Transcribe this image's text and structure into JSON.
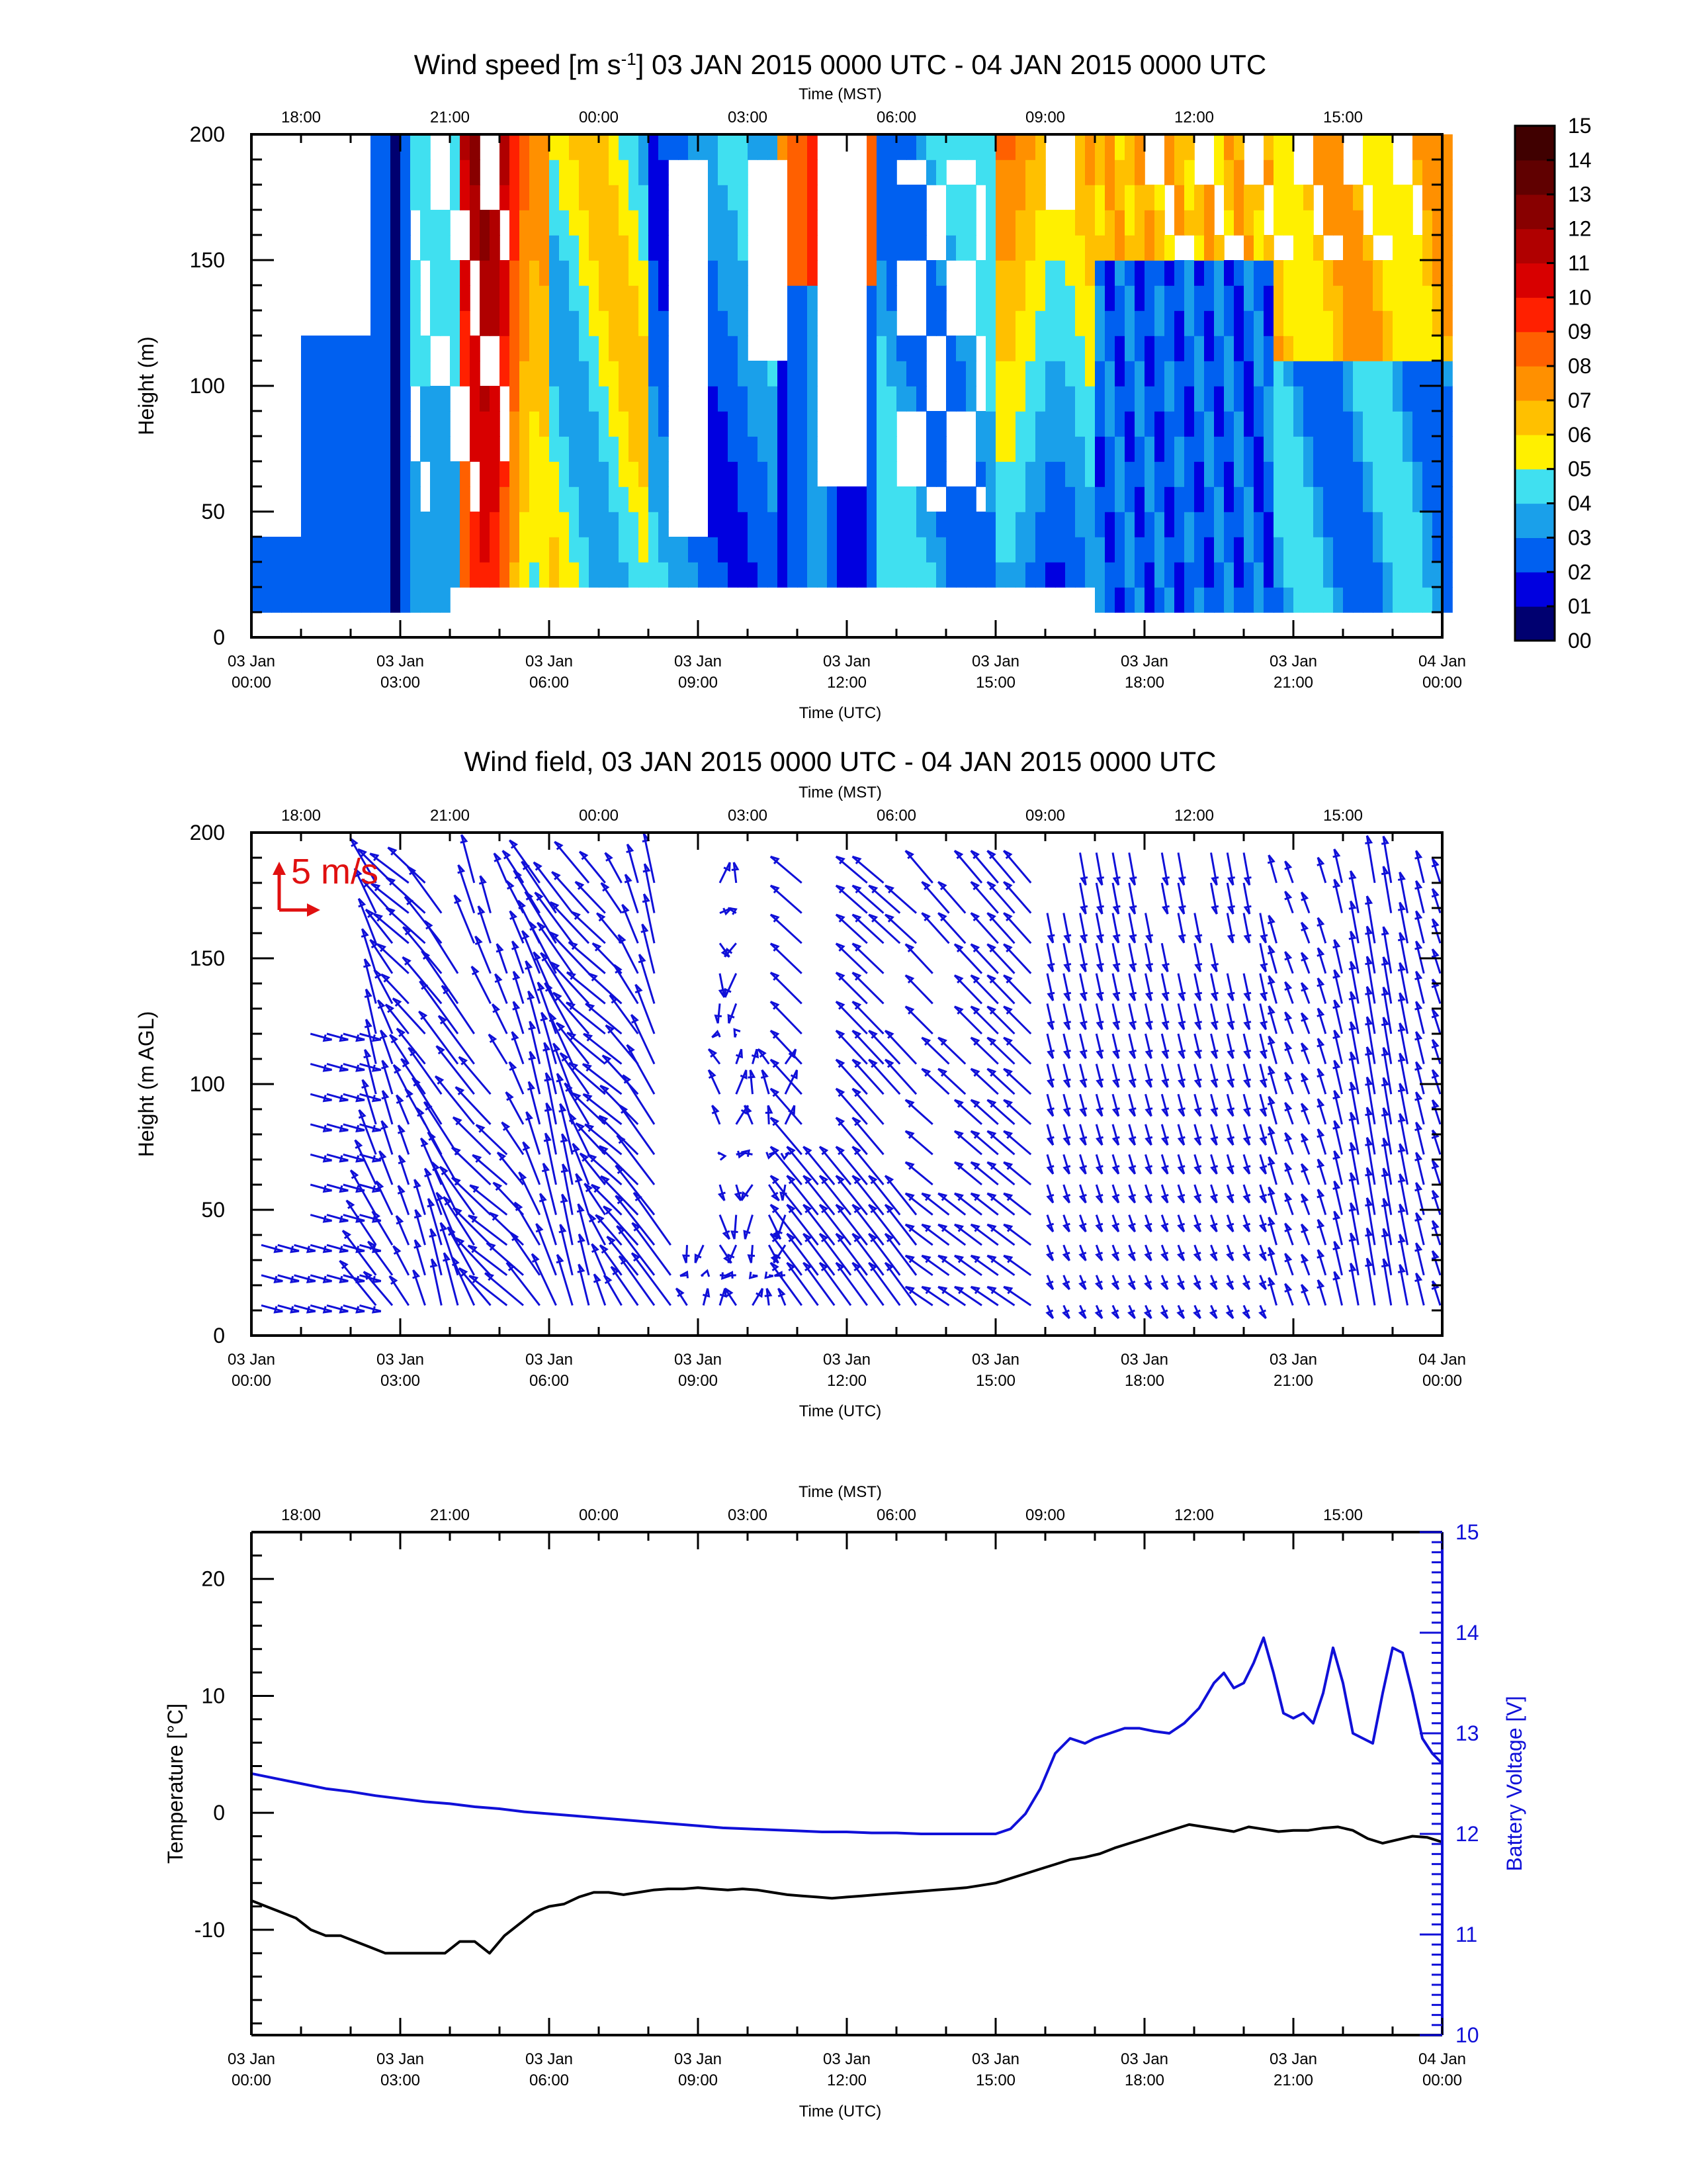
{
  "chart_data": [
    {
      "type": "heatmap",
      "title_pre": "Wind speed [m s",
      "title_sup": "-1",
      "title_post": "] 03 JAN 2015 0000 UTC - 04 JAN 2015 0000 UTC",
      "top_axis_label": "Time (MST)",
      "top_ticks": [
        "18:00",
        "21:00",
        "00:00",
        "03:00",
        "06:00",
        "09:00",
        "12:00",
        "15:00"
      ],
      "xlabel": "Time (UTC)",
      "x_ticks": [
        {
          "line1": "03 Jan",
          "line2": "00:00"
        },
        {
          "line1": "03 Jan",
          "line2": "03:00"
        },
        {
          "line1": "03 Jan",
          "line2": "06:00"
        },
        {
          "line1": "03 Jan",
          "line2": "09:00"
        },
        {
          "line1": "03 Jan",
          "line2": "12:00"
        },
        {
          "line1": "03 Jan",
          "line2": "15:00"
        },
        {
          "line1": "03 Jan",
          "line2": "18:00"
        },
        {
          "line1": "03 Jan",
          "line2": "21:00"
        },
        {
          "line1": "04 Jan",
          "line2": "00:00"
        }
      ],
      "xlim": [
        0,
        24
      ],
      "ylabel": "Height (m)",
      "ylim": [
        0,
        200
      ],
      "y_ticks": [
        "0",
        "50",
        "100",
        "150",
        "200"
      ],
      "colorbar": {
        "labels": [
          "00",
          "01",
          "02",
          "03",
          "04",
          "05",
          "06",
          "07",
          "08",
          "09",
          "10",
          "11",
          "12",
          "13",
          "14",
          "15"
        ],
        "colors": [
          "#000070",
          "#0000e0",
          "#0060f0",
          "#1aa0ea",
          "#40e0f0",
          "#fff000",
          "#ffc000",
          "#ff9000",
          "#ff6000",
          "#ff2000",
          "#d80000",
          "#b00000",
          "#880000",
          "#600000",
          "#400000"
        ]
      }
    },
    {
      "type": "vector-field",
      "title": "Wind field, 03 JAN 2015 0000 UTC - 04 JAN 2015 0000 UTC",
      "top_axis_label": "Time (MST)",
      "top_ticks": [
        "18:00",
        "21:00",
        "00:00",
        "03:00",
        "06:00",
        "09:00",
        "12:00",
        "15:00"
      ],
      "xlabel": "Time (UTC)",
      "x_ticks": [
        {
          "line1": "03 Jan",
          "line2": "00:00"
        },
        {
          "line1": "03 Jan",
          "line2": "03:00"
        },
        {
          "line1": "03 Jan",
          "line2": "06:00"
        },
        {
          "line1": "03 Jan",
          "line2": "09:00"
        },
        {
          "line1": "03 Jan",
          "line2": "12:00"
        },
        {
          "line1": "03 Jan",
          "line2": "15:00"
        },
        {
          "line1": "03 Jan",
          "line2": "18:00"
        },
        {
          "line1": "03 Jan",
          "line2": "21:00"
        },
        {
          "line1": "04 Jan",
          "line2": "00:00"
        }
      ],
      "xlim": [
        0,
        24
      ],
      "ylabel": "Height (m AGL)",
      "ylim": [
        0,
        200
      ],
      "y_ticks": [
        "0",
        "50",
        "100",
        "150",
        "200"
      ],
      "scale_label": "5 m/s",
      "arrow_color": "#1010d8",
      "scale_color": "#e01010"
    },
    {
      "type": "line",
      "top_axis_label": "Time (MST)",
      "top_ticks": [
        "18:00",
        "21:00",
        "00:00",
        "03:00",
        "06:00",
        "09:00",
        "12:00",
        "15:00"
      ],
      "xlabel": "Time (UTC)",
      "x_ticks": [
        {
          "line1": "03 Jan",
          "line2": "00:00"
        },
        {
          "line1": "03 Jan",
          "line2": "03:00"
        },
        {
          "line1": "03 Jan",
          "line2": "06:00"
        },
        {
          "line1": "03 Jan",
          "line2": "09:00"
        },
        {
          "line1": "03 Jan",
          "line2": "12:00"
        },
        {
          "line1": "03 Jan",
          "line2": "15:00"
        },
        {
          "line1": "03 Jan",
          "line2": "18:00"
        },
        {
          "line1": "03 Jan",
          "line2": "21:00"
        },
        {
          "line1": "04 Jan",
          "line2": "00:00"
        }
      ],
      "xlim": [
        0,
        24
      ],
      "ylabel_left": "Temperature [°C]",
      "ylim_left": [
        -19,
        24
      ],
      "y_ticks_left": [
        "-10",
        "0",
        "10",
        "20"
      ],
      "ylabel_right": "Battery Voltage [V]",
      "ylim_right": [
        10,
        15
      ],
      "y_ticks_right": [
        "10",
        "11",
        "12",
        "13",
        "14",
        "15"
      ],
      "right_color": "#1010d8",
      "series": [
        {
          "axis": "left",
          "color": "#000000",
          "x": [
            0,
            0.3,
            0.6,
            0.9,
            1.2,
            1.5,
            1.8,
            2.1,
            2.4,
            2.7,
            3.0,
            3.3,
            3.6,
            3.9,
            4.2,
            4.5,
            4.8,
            5.1,
            5.4,
            5.7,
            6.0,
            6.3,
            6.6,
            6.9,
            7.2,
            7.5,
            7.8,
            8.1,
            8.4,
            8.7,
            9.0,
            9.3,
            9.6,
            9.9,
            10.2,
            10.5,
            10.8,
            11.1,
            11.4,
            11.7,
            12.0,
            12.3,
            12.6,
            12.9,
            13.2,
            13.5,
            13.8,
            14.1,
            14.4,
            14.7,
            15.0,
            15.3,
            15.6,
            15.9,
            16.2,
            16.5,
            16.8,
            17.1,
            17.4,
            17.7,
            18.0,
            18.3,
            18.6,
            18.9,
            19.2,
            19.5,
            19.8,
            20.1,
            20.4,
            20.7,
            21.0,
            21.3,
            21.6,
            21.9,
            22.2,
            22.5,
            22.8,
            23.1,
            23.4,
            23.7,
            24.0
          ],
          "values": [
            -7.5,
            -8,
            -8.5,
            -9,
            -10,
            -10.5,
            -10.5,
            -11,
            -11.5,
            -12,
            -12,
            -12,
            -12,
            -12,
            -11,
            -11,
            -12,
            -10.5,
            -9.5,
            -8.5,
            -8,
            -7.8,
            -7.2,
            -6.8,
            -6.8,
            -7,
            -6.8,
            -6.6,
            -6.5,
            -6.5,
            -6.4,
            -6.5,
            -6.6,
            -6.5,
            -6.6,
            -6.8,
            -7,
            -7.1,
            -7.2,
            -7.3,
            -7.2,
            -7.1,
            -7,
            -6.9,
            -6.8,
            -6.7,
            -6.6,
            -6.5,
            -6.4,
            -6.2,
            -6,
            -5.6,
            -5.2,
            -4.8,
            -4.4,
            -4,
            -3.8,
            -3.5,
            -3,
            -2.6,
            -2.2,
            -1.8,
            -1.4,
            -1,
            -1.2,
            -1.4,
            -1.6,
            -1.2,
            -1.4,
            -1.6,
            -1.5,
            -1.5,
            -1.3,
            -1.2,
            -1.5,
            -2.2,
            -2.6,
            -2.3,
            -2.0,
            -2.1,
            -2.5
          ]
        },
        {
          "axis": "right",
          "color": "#1010d8",
          "x": [
            0,
            0.5,
            1,
            1.5,
            2,
            2.5,
            3,
            3.5,
            4,
            4.5,
            5,
            5.5,
            6,
            6.5,
            7,
            7.5,
            8,
            8.5,
            9,
            9.5,
            10,
            10.5,
            11,
            11.5,
            12,
            12.5,
            13,
            13.5,
            14,
            14.5,
            15,
            15.3,
            15.6,
            15.9,
            16.2,
            16.5,
            16.8,
            17.0,
            17.3,
            17.6,
            17.9,
            18.2,
            18.5,
            18.8,
            19.1,
            19.4,
            19.6,
            19.8,
            20.0,
            20.2,
            20.4,
            20.6,
            20.8,
            21.0,
            21.2,
            21.4,
            21.6,
            21.8,
            22.0,
            22.2,
            22.4,
            22.6,
            22.8,
            23.0,
            23.2,
            23.4,
            23.6,
            23.8,
            24.0
          ],
          "values": [
            12.6,
            12.55,
            12.5,
            12.45,
            12.42,
            12.38,
            12.35,
            12.32,
            12.3,
            12.27,
            12.25,
            12.22,
            12.2,
            12.18,
            12.16,
            12.14,
            12.12,
            12.1,
            12.08,
            12.06,
            12.05,
            12.04,
            12.03,
            12.02,
            12.02,
            12.01,
            12.01,
            12.0,
            12.0,
            12.0,
            12.0,
            12.05,
            12.2,
            12.45,
            12.8,
            12.95,
            12.9,
            12.95,
            13.0,
            13.05,
            13.05,
            13.02,
            13.0,
            13.1,
            13.25,
            13.5,
            13.6,
            13.45,
            13.5,
            13.7,
            13.95,
            13.6,
            13.2,
            13.15,
            13.2,
            13.1,
            13.4,
            13.85,
            13.5,
            13.0,
            12.95,
            12.9,
            13.4,
            13.85,
            13.8,
            13.4,
            12.95,
            12.8,
            12.7
          ]
        }
      ]
    }
  ]
}
